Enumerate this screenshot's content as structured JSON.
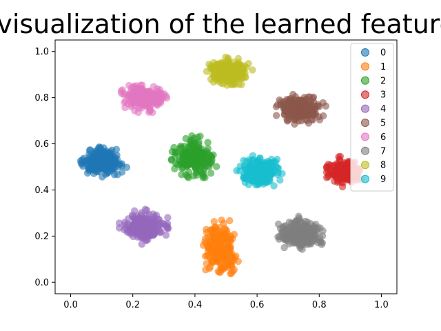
{
  "chart_data": {
    "type": "scatter",
    "title": "E visualization of the learned features",
    "xlabel": "",
    "ylabel": "",
    "xlim": [
      -0.05,
      1.05
    ],
    "ylim": [
      -0.05,
      1.05
    ],
    "xticks": [
      "0.0",
      "0.2",
      "0.4",
      "0.6",
      "0.8",
      "1.0"
    ],
    "yticks": [
      "0.0",
      "0.2",
      "0.4",
      "0.6",
      "0.8",
      "1.0"
    ],
    "grid": false,
    "legend_position": "top-right",
    "series": [
      {
        "name": "0",
        "color": "#1f77b4",
        "center": [
          0.1,
          0.52
        ],
        "spread": [
          0.045,
          0.035
        ]
      },
      {
        "name": "1",
        "color": "#ff7f0e",
        "center": [
          0.48,
          0.15
        ],
        "spread": [
          0.035,
          0.07
        ]
      },
      {
        "name": "2",
        "color": "#2ca02c",
        "center": [
          0.4,
          0.54
        ],
        "spread": [
          0.04,
          0.05
        ]
      },
      {
        "name": "3",
        "color": "#d62728",
        "center": [
          0.88,
          0.48
        ],
        "spread": [
          0.035,
          0.035
        ]
      },
      {
        "name": "4",
        "color": "#9467bd",
        "center": [
          0.24,
          0.24
        ],
        "spread": [
          0.045,
          0.04
        ]
      },
      {
        "name": "5",
        "color": "#8c564b",
        "center": [
          0.74,
          0.75
        ],
        "spread": [
          0.045,
          0.035
        ]
      },
      {
        "name": "6",
        "color": "#e377c2",
        "center": [
          0.24,
          0.8
        ],
        "spread": [
          0.045,
          0.035
        ]
      },
      {
        "name": "7",
        "color": "#7f7f7f",
        "center": [
          0.74,
          0.21
        ],
        "spread": [
          0.045,
          0.04
        ]
      },
      {
        "name": "8",
        "color": "#bcbd22",
        "center": [
          0.51,
          0.91
        ],
        "spread": [
          0.04,
          0.035
        ]
      },
      {
        "name": "9",
        "color": "#17becf",
        "center": [
          0.61,
          0.48
        ],
        "spread": [
          0.04,
          0.04
        ]
      }
    ]
  }
}
